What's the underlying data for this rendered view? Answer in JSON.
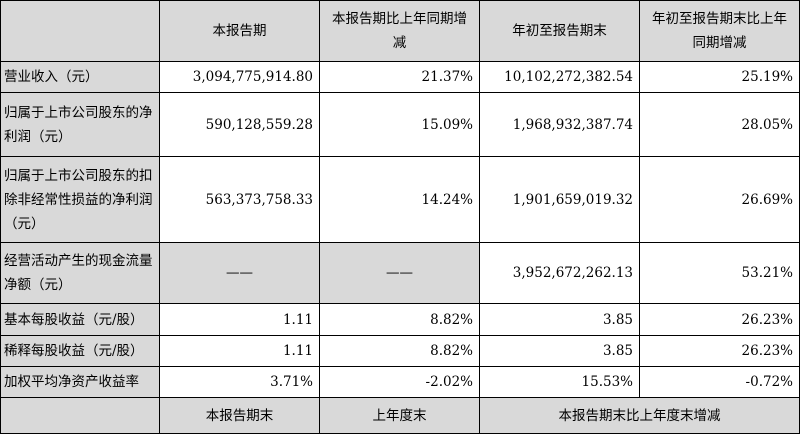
{
  "table": {
    "header": {
      "col1": "本报告期",
      "col2": "本报告期比上年同期增减",
      "col3": "年初至报告期末",
      "col4": "年初至报告期末比上年同期增减"
    },
    "rows": [
      {
        "label": "营业收入（元）",
        "v1": "3,094,775,914.80",
        "v2": "21.37%",
        "v3": "10,102,272,382.54",
        "v4": "25.19%"
      },
      {
        "label": "归属于上市公司股东的净利润（元）",
        "v1": "590,128,559.28",
        "v2": "15.09%",
        "v3": "1,968,932,387.74",
        "v4": "28.05%"
      },
      {
        "label": "归属于上市公司股东的扣除非经常性损益的净利润（元）",
        "v1": "563,373,758.33",
        "v2": "14.24%",
        "v3": "1,901,659,019.32",
        "v4": "26.69%"
      },
      {
        "label": "经营活动产生的现金流量净额（元）",
        "v1": "——",
        "v2": "——",
        "v3": "3,952,672,262.13",
        "v4": "53.21%"
      },
      {
        "label": "基本每股收益（元/股）",
        "v1": "1.11",
        "v2": "8.82%",
        "v3": "3.85",
        "v4": "26.23%"
      },
      {
        "label": "稀释每股收益（元/股）",
        "v1": "1.11",
        "v2": "8.82%",
        "v3": "3.85",
        "v4": "26.23%"
      },
      {
        "label": "加权平均净资产收益率",
        "v1": "3.71%",
        "v2": "-2.02%",
        "v3": "15.53%",
        "v4": "-0.72%"
      }
    ],
    "footer": {
      "col1": "本报告期末",
      "col2": "上年度末",
      "col3": "本报告期末比上年度末增减"
    }
  }
}
